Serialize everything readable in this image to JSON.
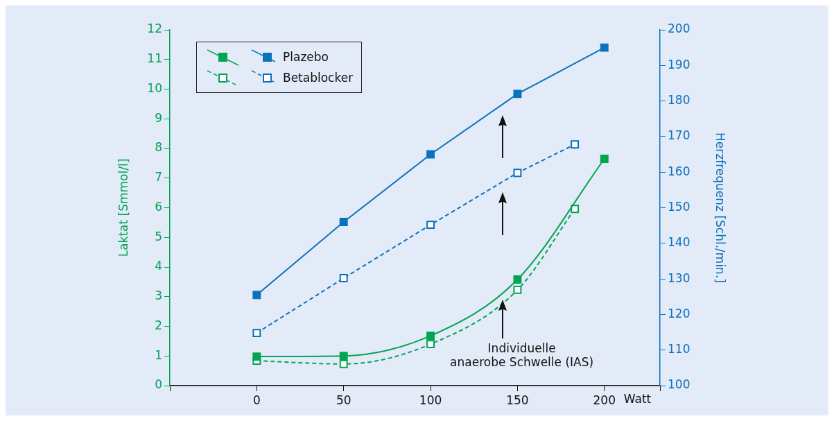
{
  "chart_data": {
    "type": "line",
    "xlabel": "Watt",
    "ylabel": "Laktat [Smmol/l]",
    "y2label": "Herzfrequenz [Schl./min.]",
    "xlim": [
      -50,
      232
    ],
    "xticks": [
      {
        "value": -50,
        "label": null
      },
      0,
      50,
      100,
      150,
      200,
      {
        "value": 232,
        "label": null
      }
    ],
    "ylim": [
      0,
      12
    ],
    "yticks": [
      0,
      1,
      2,
      3,
      4,
      5,
      6,
      7,
      8,
      9,
      10,
      11,
      12
    ],
    "y2lim": [
      100,
      200
    ],
    "y2ticks": [
      100,
      110,
      120,
      130,
      140,
      150,
      160,
      170,
      180,
      190,
      200
    ],
    "legend": "top left",
    "grid": false,
    "marker": "square",
    "series": [
      {
        "color": "#00a651",
        "axis": "y",
        "line_style": "solid",
        "x": [
          0,
          50,
          100,
          150,
          200
        ],
        "values": [
          0.98,
          1.0,
          1.68,
          3.58,
          7.65
        ]
      },
      {
        "name": "Plazebo",
        "color": "#0a72bb",
        "axis": "y2",
        "line_style": "solid",
        "x": [
          0,
          50,
          100,
          150,
          200
        ],
        "values": [
          125.5,
          146,
          165,
          182,
          195
        ]
      },
      {
        "color": "#00a651",
        "axis": "y",
        "line_style": "dashed",
        "x": [
          0,
          50,
          100,
          150,
          183
        ],
        "values": [
          0.84,
          0.73,
          1.4,
          3.23,
          5.96
        ]
      },
      {
        "name": "Betablocker",
        "color": "#0a72bb",
        "axis": "y2",
        "line_style": "dashed",
        "x": [
          0,
          50,
          100,
          150,
          183
        ],
        "values": [
          114.8,
          130.2,
          145.2,
          159.8,
          167.8
        ]
      }
    ],
    "annotations": [
      "Individuelle\nanaerobe Schwelle (IAS)"
    ]
  }
}
